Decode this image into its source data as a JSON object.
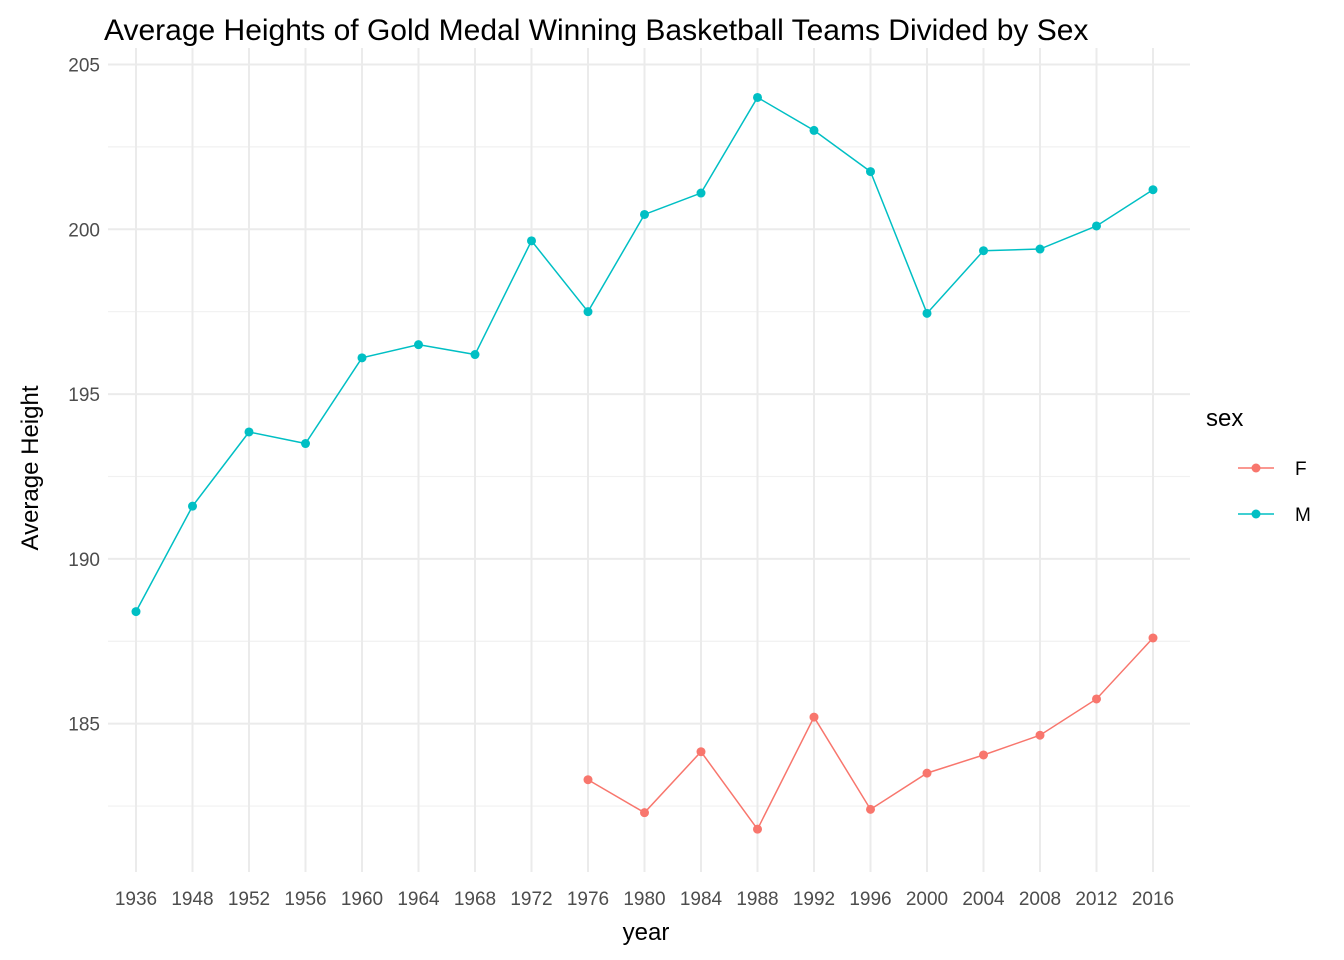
{
  "chart_data": {
    "type": "line",
    "title": "Average Heights of Gold Medal Winning Basketball Teams Divided by Sex",
    "xlabel": "year",
    "ylabel": "Average Height",
    "categories": [
      "1936",
      "1948",
      "1952",
      "1956",
      "1960",
      "1964",
      "1968",
      "1972",
      "1976",
      "1980",
      "1984",
      "1988",
      "1992",
      "1996",
      "2000",
      "2004",
      "2008",
      "2012",
      "2016"
    ],
    "ylim": [
      180.5,
      205.5
    ],
    "yticks": [
      185,
      190,
      195,
      200,
      205
    ],
    "y_minor_ticks": [
      182.5,
      187.5,
      192.5,
      197.5,
      202.5
    ],
    "grid": true,
    "legend": {
      "title": "sex",
      "position": "right"
    },
    "series": [
      {
        "name": "F",
        "color": "#F8766D",
        "x": [
          "1976",
          "1980",
          "1984",
          "1988",
          "1992",
          "1996",
          "2000",
          "2004",
          "2008",
          "2012",
          "2016"
        ],
        "values": [
          183.3,
          182.3,
          184.15,
          181.8,
          185.2,
          182.4,
          183.5,
          184.05,
          184.65,
          185.75,
          187.6
        ]
      },
      {
        "name": "M",
        "color": "#00BFC4",
        "x": [
          "1936",
          "1948",
          "1952",
          "1956",
          "1960",
          "1964",
          "1968",
          "1972",
          "1976",
          "1980",
          "1984",
          "1988",
          "1992",
          "1996",
          "2000",
          "2004",
          "2008",
          "2012",
          "2016"
        ],
        "values": [
          188.4,
          191.6,
          193.85,
          193.5,
          196.1,
          196.5,
          196.2,
          199.65,
          197.5,
          200.45,
          201.1,
          204.0,
          203.0,
          201.75,
          197.45,
          199.35,
          199.4,
          200.1,
          201.2
        ]
      }
    ]
  }
}
